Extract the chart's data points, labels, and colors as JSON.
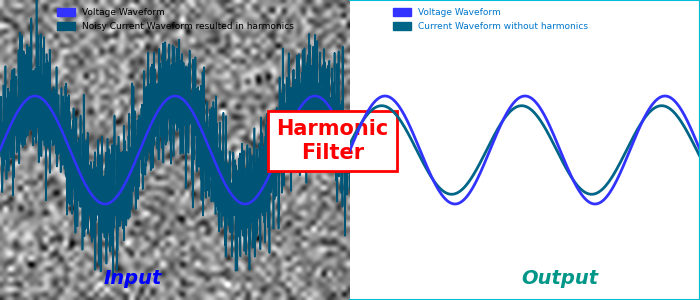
{
  "fig_width": 7.0,
  "fig_height": 3.0,
  "dpi": 100,
  "left_label": "Input",
  "right_label": "Output",
  "left_label_color": "#0000ff",
  "right_label_color": "#009688",
  "label_fontsize": 14,
  "harmonic_filter_line1": "Harmonic",
  "harmonic_filter_line2": "Filter",
  "harmonic_filter_color": "#ff0000",
  "harmonic_filter_fontsize": 15,
  "voltage_color": "#3333ff",
  "current_noisy_color": "#005577",
  "current_clean_color": "#006688",
  "legend_left_label1": "Voltage Waveform",
  "legend_left_label2": "Noisy Current Waveform resulted in harmonics",
  "legend_right_label1": "Voltage Waveform",
  "legend_right_label2": "Current Waveform without harmonics",
  "legend_text_color_left": "#000000",
  "legend_text_color_right": "#0077cc",
  "wave_amplitude": 0.18,
  "wave_cycles": 2.5,
  "noise_scale": 0.04,
  "noise_freq_mult": 15
}
